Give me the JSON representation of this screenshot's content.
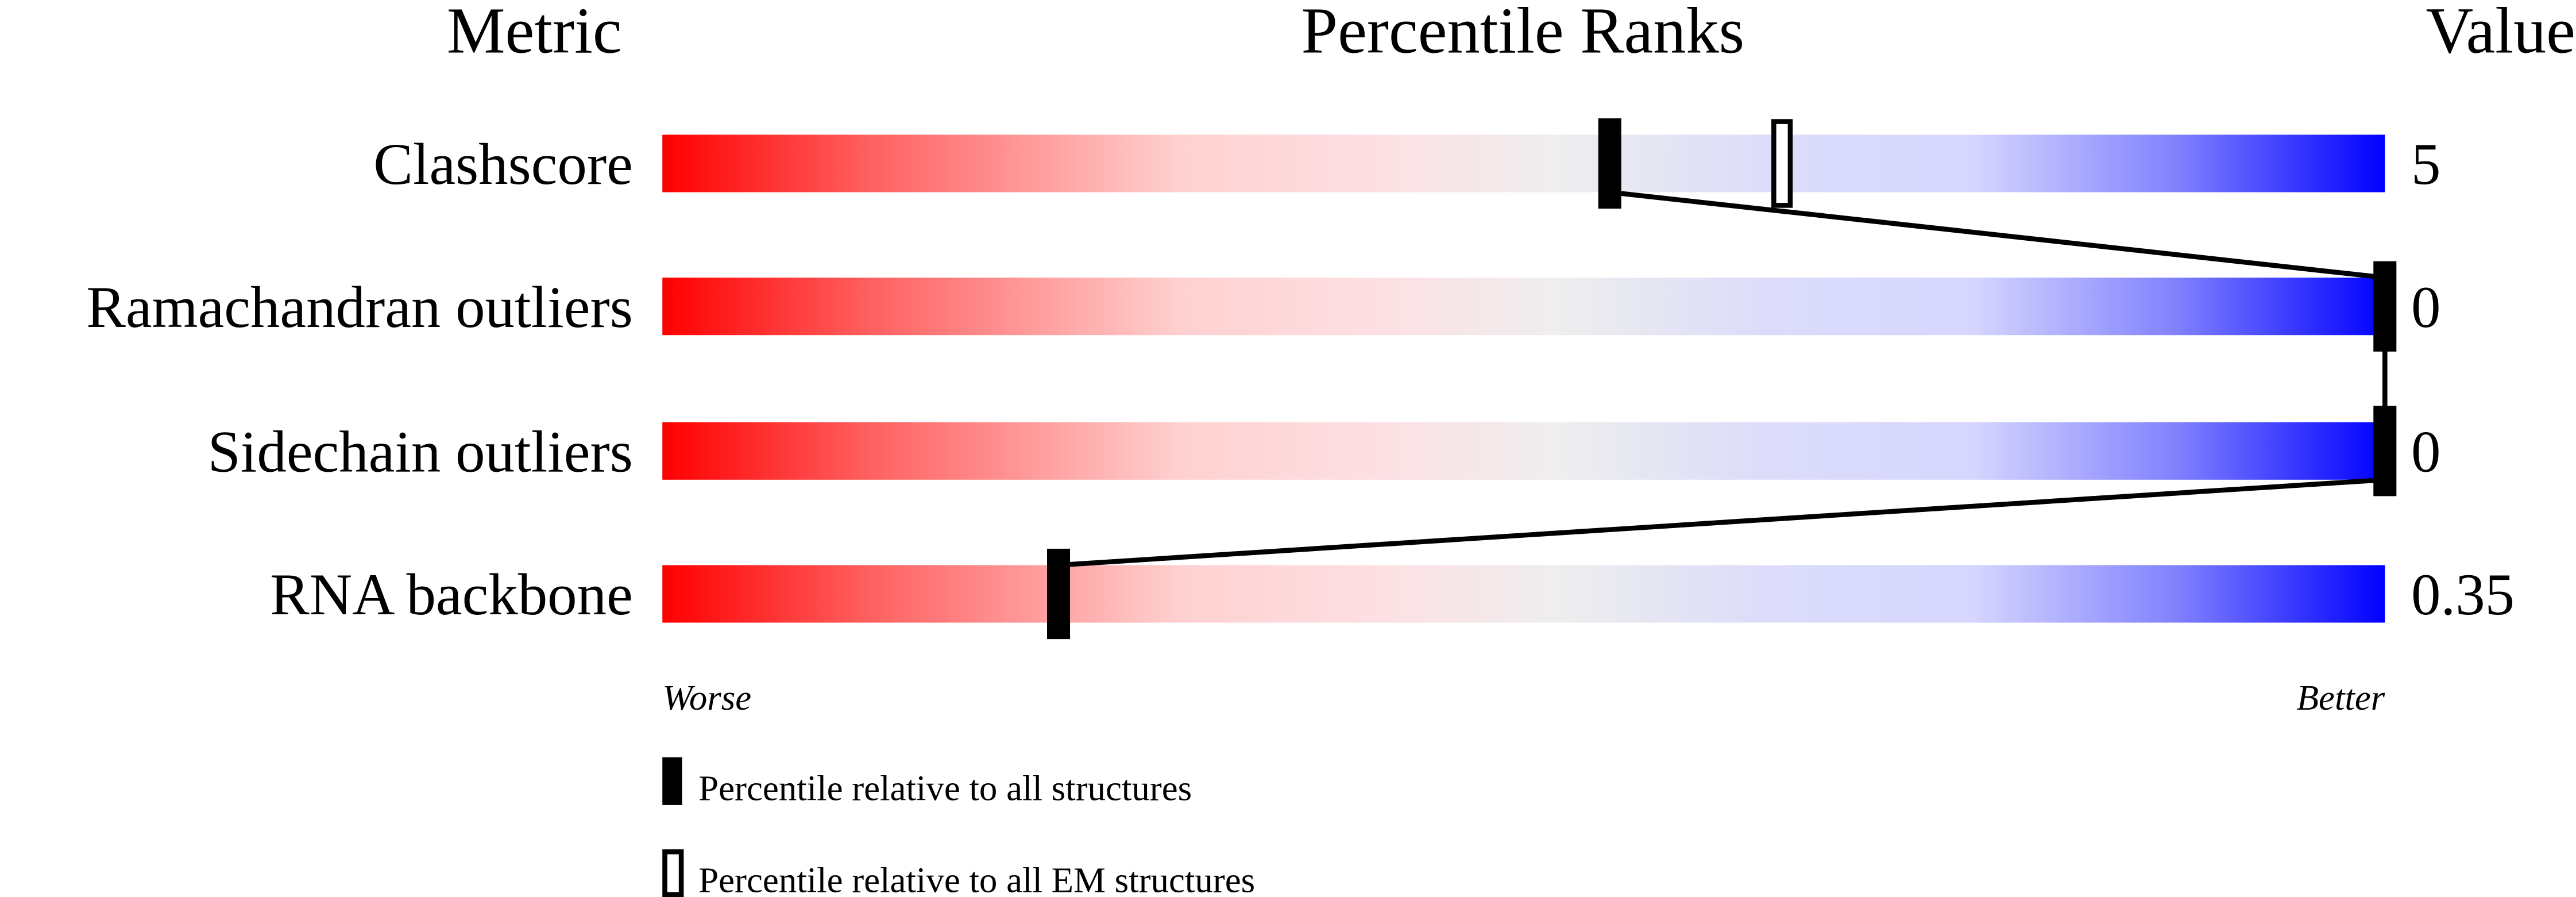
{
  "chart_data": {
    "type": "bar",
    "headers": {
      "metric": "Metric",
      "ranks": "Percentile Ranks",
      "value": "Value"
    },
    "metrics": [
      {
        "label": "Clashscore",
        "value": "5",
        "percentile_all": 55,
        "percentile_em": 65
      },
      {
        "label": "Ramachandran outliers",
        "value": "0",
        "percentile_all": 100
      },
      {
        "label": "Sidechain outliers",
        "value": "0",
        "percentile_all": 100
      },
      {
        "label": "RNA backbone",
        "value": "0.35",
        "percentile_all": 23
      }
    ],
    "axis": {
      "left_label": "Worse",
      "right_label": "Better",
      "range": [
        0,
        100
      ]
    },
    "legend": [
      {
        "style": "filled",
        "label": "Percentile relative to all structures"
      },
      {
        "style": "hollow",
        "label": "Percentile relative to all EM structures"
      }
    ],
    "colors": {
      "worse": "#ff0000",
      "middle": "#eeeeee",
      "better": "#0000ff"
    }
  }
}
